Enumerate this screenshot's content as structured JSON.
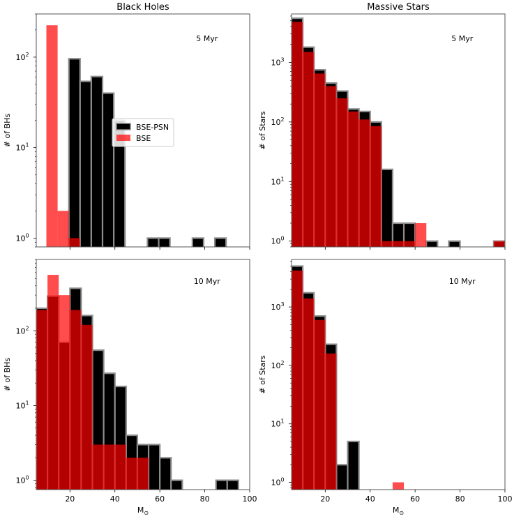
{
  "colors": {
    "psn_fill": "#000000",
    "bse_fill": "#ff0000",
    "bse_opacity": 0.7,
    "edge": "#8c8c8c"
  },
  "legend": {
    "entries": [
      "BSE-PSN",
      "BSE"
    ]
  },
  "chart_data": [
    {
      "type": "bar",
      "title": "Black Holes",
      "annotation": "5 Myr",
      "xlabel": "",
      "ylabel": "# of BHs",
      "xlim": [
        5,
        100
      ],
      "ylim": [
        0.8,
        300
      ],
      "xticks": [
        20,
        40,
        60,
        80,
        100
      ],
      "yticks": [
        {
          "value": 1,
          "label": "10",
          "exp": "0"
        },
        {
          "value": 10,
          "label": "10",
          "exp": "1"
        },
        {
          "value": 100,
          "label": "10",
          "exp": "2"
        }
      ],
      "show_xtick_labels": false,
      "bin_width": 5,
      "series": [
        {
          "name": "BSE-PSN",
          "bins": [
            [
              19.5,
              96
            ],
            [
              24.5,
              54
            ],
            [
              29.5,
              61
            ],
            [
              34.5,
              40
            ],
            [
              39.5,
              20
            ],
            [
              54.5,
              1
            ],
            [
              59.5,
              1
            ],
            [
              74.5,
              1
            ],
            [
              84.5,
              1
            ]
          ]
        },
        {
          "name": "BSE",
          "bins": [
            [
              9.5,
              225
            ],
            [
              14.5,
              2
            ],
            [
              19.5,
              1
            ]
          ]
        }
      ]
    },
    {
      "type": "bar",
      "title": "Massive Stars",
      "annotation": "5 Myr",
      "xlabel": "",
      "ylabel": "# of Stars",
      "xlim": [
        5,
        100
      ],
      "ylim": [
        0.8,
        6500
      ],
      "xticks": [
        20,
        40,
        60,
        80,
        100
      ],
      "yticks": [
        {
          "value": 1,
          "label": "10",
          "exp": "0"
        },
        {
          "value": 10,
          "label": "10",
          "exp": "1"
        },
        {
          "value": 100,
          "label": "10",
          "exp": "2"
        },
        {
          "value": 1000,
          "label": "10",
          "exp": "3"
        }
      ],
      "show_xtick_labels": false,
      "bin_width": 5,
      "series": [
        {
          "name": "BSE-PSN",
          "bins": [
            [
              5,
              5500
            ],
            [
              10,
              1800
            ],
            [
              15,
              750
            ],
            [
              20,
              450
            ],
            [
              25,
              330
            ],
            [
              30,
              165
            ],
            [
              35,
              150
            ],
            [
              40,
              100
            ],
            [
              45,
              16
            ],
            [
              50,
              2
            ],
            [
              55,
              2
            ],
            [
              65,
              1
            ],
            [
              75,
              1
            ],
            [
              95,
              1
            ]
          ]
        },
        {
          "name": "BSE",
          "bins": [
            [
              5,
              4800
            ],
            [
              10,
              1500
            ],
            [
              15,
              650
            ],
            [
              20,
              400
            ],
            [
              25,
              250
            ],
            [
              30,
              150
            ],
            [
              35,
              110
            ],
            [
              40,
              85
            ],
            [
              45,
              1
            ],
            [
              50,
              1
            ],
            [
              55,
              1
            ],
            [
              60,
              2
            ],
            [
              95,
              1
            ]
          ]
        }
      ]
    },
    {
      "type": "bar",
      "title": "",
      "annotation": "10 Myr",
      "xlabel": "M",
      "xlabel_sub": "⊙",
      "ylabel": "# of BHs",
      "xlim": [
        5,
        100
      ],
      "ylim": [
        0.75,
        900
      ],
      "xticks": [
        20,
        40,
        60,
        80,
        100
      ],
      "yticks": [
        {
          "value": 1,
          "label": "10",
          "exp": "0"
        },
        {
          "value": 10,
          "label": "10",
          "exp": "1"
        },
        {
          "value": 100,
          "label": "10",
          "exp": "2"
        }
      ],
      "show_xtick_labels": true,
      "bin_width": 5,
      "series": [
        {
          "name": "BSE-PSN",
          "bins": [
            [
              5,
              200
            ],
            [
              10,
              290
            ],
            [
              15,
              70
            ],
            [
              20,
              370
            ],
            [
              25,
              160
            ],
            [
              30,
              55
            ],
            [
              35,
              27
            ],
            [
              40,
              18
            ],
            [
              45,
              4
            ],
            [
              50,
              3
            ],
            [
              55,
              3
            ],
            [
              60,
              2
            ],
            [
              65,
              1
            ],
            [
              85,
              1
            ],
            [
              90,
              1
            ]
          ]
        },
        {
          "name": "BSE",
          "bins": [
            [
              5,
              190
            ],
            [
              10,
              560
            ],
            [
              15,
              300
            ],
            [
              20,
              190
            ],
            [
              25,
              120
            ],
            [
              30,
              3
            ],
            [
              35,
              3
            ],
            [
              40,
              3
            ],
            [
              45,
              2
            ],
            [
              50,
              2
            ]
          ]
        }
      ]
    },
    {
      "type": "bar",
      "title": "",
      "annotation": "10 Myr",
      "xlabel": "M",
      "xlabel_sub": "⊙",
      "ylabel": "# of Stars",
      "xlim": [
        5,
        100
      ],
      "ylim": [
        0.75,
        6500
      ],
      "xticks": [
        20,
        40,
        60,
        80,
        100
      ],
      "yticks": [
        {
          "value": 1,
          "label": "10",
          "exp": "0"
        },
        {
          "value": 10,
          "label": "10",
          "exp": "1"
        },
        {
          "value": 100,
          "label": "10",
          "exp": "2"
        },
        {
          "value": 1000,
          "label": "10",
          "exp": "3"
        }
      ],
      "show_xtick_labels": true,
      "bin_width": 5,
      "series": [
        {
          "name": "BSE-PSN",
          "bins": [
            [
              5,
              5000
            ],
            [
              10,
              1750
            ],
            [
              15,
              700
            ],
            [
              20,
              230
            ],
            [
              25,
              2
            ],
            [
              30,
              5
            ]
          ]
        },
        {
          "name": "BSE",
          "bins": [
            [
              5,
              4200
            ],
            [
              10,
              1400
            ],
            [
              15,
              600
            ],
            [
              20,
              160
            ],
            [
              50,
              1
            ]
          ]
        }
      ]
    }
  ]
}
